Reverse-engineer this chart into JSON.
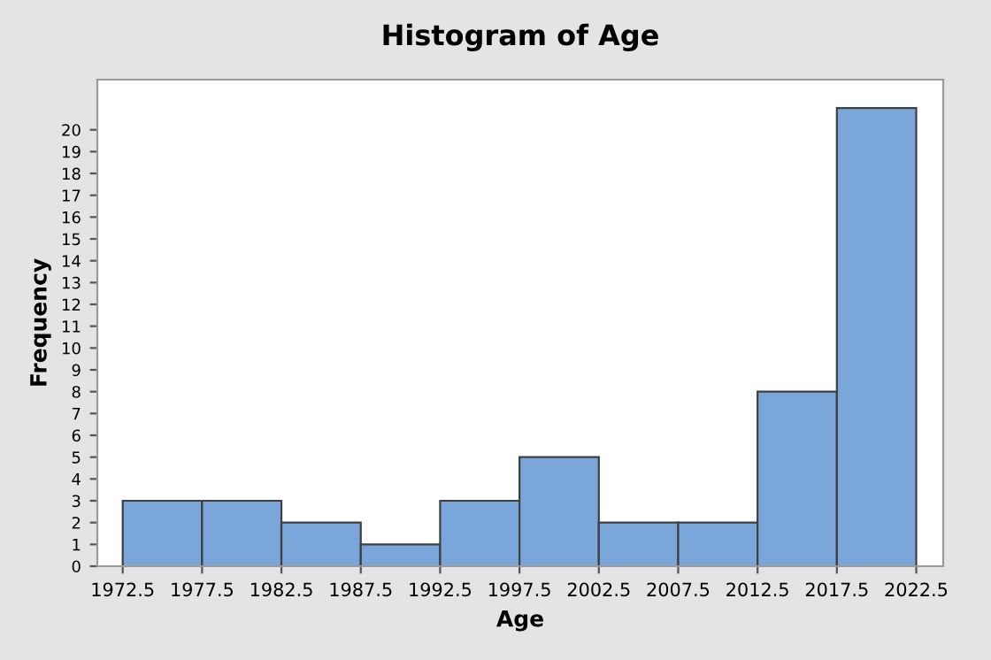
{
  "chart_data": {
    "type": "histogram",
    "title": "Histogram of Age",
    "xlabel": "Age",
    "ylabel": "Frequency",
    "bins": [
      1972.5,
      1977.5,
      1982.5,
      1987.5,
      1992.5,
      1997.5,
      2002.5,
      2007.5,
      2012.5,
      2017.5,
      2022.5
    ],
    "values": [
      3,
      3,
      2,
      1,
      3,
      5,
      2,
      2,
      8,
      21
    ],
    "color": "#7ba6d9",
    "xlim": [
      1970.9,
      2024.2
    ],
    "ylim": [
      0,
      22.3
    ],
    "xticks": [
      1972.5,
      1977.5,
      1982.5,
      1987.5,
      1992.5,
      1997.5,
      2002.5,
      2007.5,
      2012.5,
      2017.5,
      2022.5
    ],
    "yticks": [
      0,
      1,
      2,
      3,
      4,
      5,
      6,
      7,
      8,
      9,
      10,
      11,
      12,
      13,
      14,
      15,
      16,
      17,
      18,
      19,
      20
    ],
    "grid": false,
    "legend": false
  }
}
